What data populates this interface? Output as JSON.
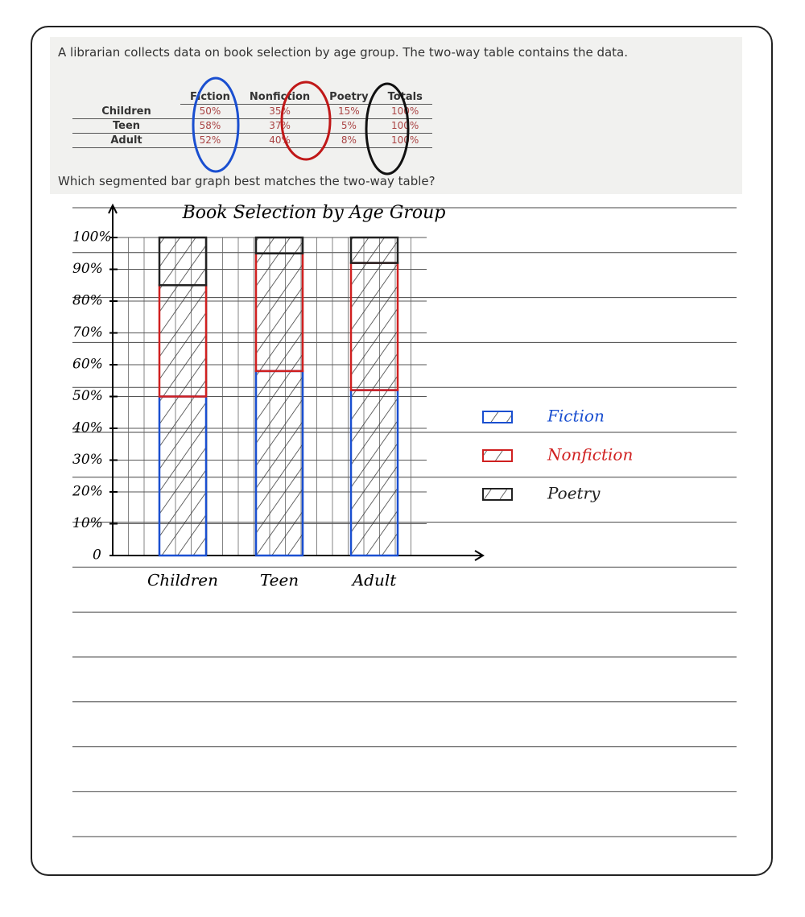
{
  "question": "A librarian collects data on book selection by age group. The two-way table contains the data.",
  "table": {
    "columns": [
      "Fiction",
      "Nonfiction",
      "Poetry",
      "Totals"
    ],
    "rows": [
      {
        "label": "Children",
        "cells": [
          "50%",
          "35%",
          "15%",
          "100%"
        ]
      },
      {
        "label": "Teen",
        "cells": [
          "58%",
          "37%",
          "5%",
          "100%"
        ]
      },
      {
        "label": "Adult",
        "cells": [
          "52%",
          "40%",
          "8%",
          "100%"
        ]
      }
    ]
  },
  "prompt": "Which segmented bar graph best matches the two-way table?",
  "chart_data": {
    "type": "stacked_bar",
    "title": "Book Selection by Age Group",
    "categories": [
      "Children",
      "Teen",
      "Adult"
    ],
    "series": [
      {
        "name": "Fiction",
        "color": "#1a4fd0",
        "values": [
          50,
          58,
          52
        ]
      },
      {
        "name": "Nonfiction",
        "color": "#d02020",
        "values": [
          35,
          37,
          40
        ]
      },
      {
        "name": "Poetry",
        "color": "#222222",
        "values": [
          15,
          5,
          8
        ]
      }
    ],
    "ylim": [
      0,
      100
    ],
    "yticks": [
      0,
      {
        "value": 10,
        "label": "10%"
      },
      {
        "value": 20,
        "label": "20%"
      },
      {
        "value": 30,
        "label": "30%"
      },
      {
        "value": 40,
        "label": "40%"
      },
      {
        "value": 50,
        "label": "50%"
      },
      {
        "value": 60,
        "label": "60%"
      },
      {
        "value": 70,
        "label": "70%"
      },
      {
        "value": 80,
        "label": "80%"
      },
      {
        "value": 90,
        "label": "90%"
      },
      {
        "value": 100,
        "label": "100%"
      }
    ],
    "grid": true,
    "legend": "right"
  }
}
